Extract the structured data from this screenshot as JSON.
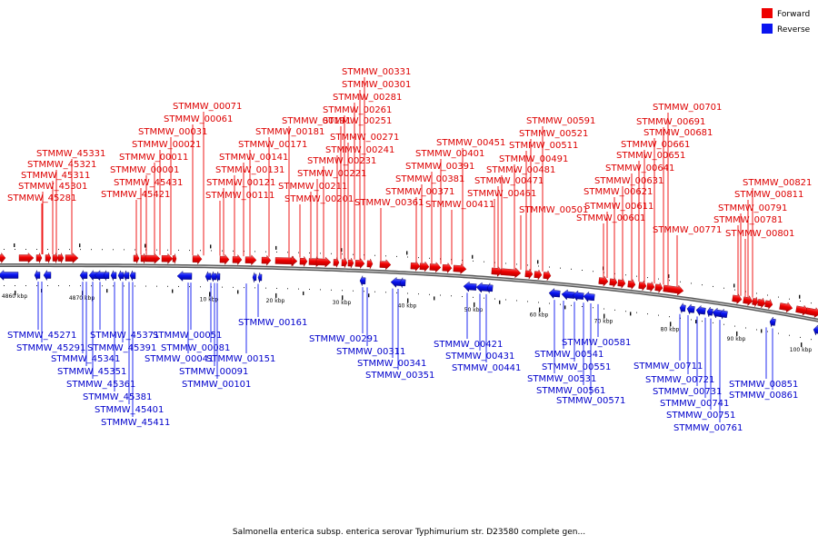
{
  "legend": {
    "forward_label": "Forward",
    "reverse_label": "Reverse",
    "forward_color": "#ee0000",
    "reverse_color": "#0a14f0"
  },
  "caption": "Salmonella enterica subsp. enterica serovar Typhimurium str. D23580 complete gen...",
  "scale_labels": [
    {
      "text": "4860 kbp",
      "kbp": 4860
    },
    {
      "text": "4870 kbp",
      "kbp": 4870
    },
    {
      "text": "10 kbp",
      "kbp": 10
    },
    {
      "text": "20 kbp",
      "kbp": 20
    },
    {
      "text": "30 kbp",
      "kbp": 30
    },
    {
      "text": "40 kbp",
      "kbp": 40
    },
    {
      "text": "50 kbp",
      "kbp": 50
    },
    {
      "text": "60 kbp",
      "kbp": 60
    },
    {
      "text": "70 kbp",
      "kbp": 70
    },
    {
      "text": "80 kbp",
      "kbp": 80
    },
    {
      "text": "90 kbp",
      "kbp": 90
    },
    {
      "text": "100 kbp",
      "kbp": 100
    }
  ],
  "forward_genes": [
    "STMMW_45281",
    "STMMW_45301",
    "STMMW_45311",
    "STMMW_45321",
    "STMMW_45331",
    "STMMW_45421",
    "STMMW_45431",
    "STMMW_00001",
    "STMMW_00011",
    "STMMW_00021",
    "STMMW_00031",
    "STMMW_00061",
    "STMMW_00071",
    "STMMW_00111",
    "STMMW_00121",
    "STMMW_00131",
    "STMMW_00141",
    "STMMW_00171",
    "STMMW_00181",
    "STMMW_00191",
    "STMMW_00201",
    "STMMW_00211",
    "STMMW_00221",
    "STMMW_00231",
    "STMMW_00241",
    "STMMW_00251",
    "STMMW_00261",
    "STMMW_00271",
    "STMMW_00281",
    "STMMW_00301",
    "STMMW_00331",
    "STMMW_00361",
    "STMMW_00371",
    "STMMW_00381",
    "STMMW_00391",
    "STMMW_00401",
    "STMMW_00411",
    "STMMW_00451",
    "STMMW_00461",
    "STMMW_00471",
    "STMMW_00481",
    "STMMW_00491",
    "STMMW_00501",
    "STMMW_00511",
    "STMMW_00521",
    "STMMW_00591",
    "STMMW_00601",
    "STMMW_00611",
    "STMMW_00621",
    "STMMW_00631",
    "STMMW_00641",
    "STMMW_00651",
    "STMMW_00661",
    "STMMW_00681",
    "STMMW_00691",
    "STMMW_00701",
    "STMMW_00771",
    "STMMW_00781",
    "STMMW_00791",
    "STMMW_00801",
    "STMMW_00811",
    "STMMW_00821"
  ],
  "reverse_genes": [
    "STMMW_45271",
    "STMMW_45291",
    "STMMW_45341",
    "STMMW_45351",
    "STMMW_45361",
    "STMMW_45371",
    "STMMW_45381",
    "STMMW_45391",
    "STMMW_45401",
    "STMMW_45411",
    "STMMW_00041",
    "STMMW_00051",
    "STMMW_00081",
    "STMMW_00091",
    "STMMW_00101",
    "STMMW_00151",
    "STMMW_00161",
    "STMMW_00291",
    "STMMW_00311",
    "STMMW_00341",
    "STMMW_00351",
    "STMMW_00421",
    "STMMW_00431",
    "STMMW_00441",
    "STMMW_00531",
    "STMMW_00541",
    "STMMW_00551",
    "STMMW_00561",
    "STMMW_00571",
    "STMMW_00581",
    "STMMW_00711",
    "STMMW_00721",
    "STMMW_00731",
    "STMMW_00741",
    "STMMW_00751",
    "STMMW_00761",
    "STMMW_00851",
    "STMMW_00861"
  ]
}
